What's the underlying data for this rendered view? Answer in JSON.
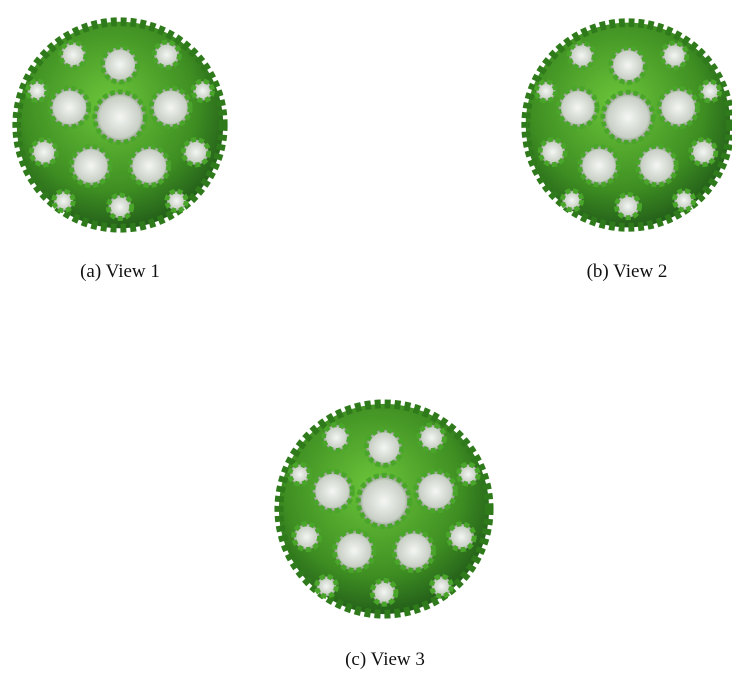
{
  "figures": [
    {
      "label": "(a)",
      "caption": "View 1"
    },
    {
      "label": "(b)",
      "caption": "View 2"
    },
    {
      "label": "(c)",
      "caption": "View 3"
    }
  ]
}
